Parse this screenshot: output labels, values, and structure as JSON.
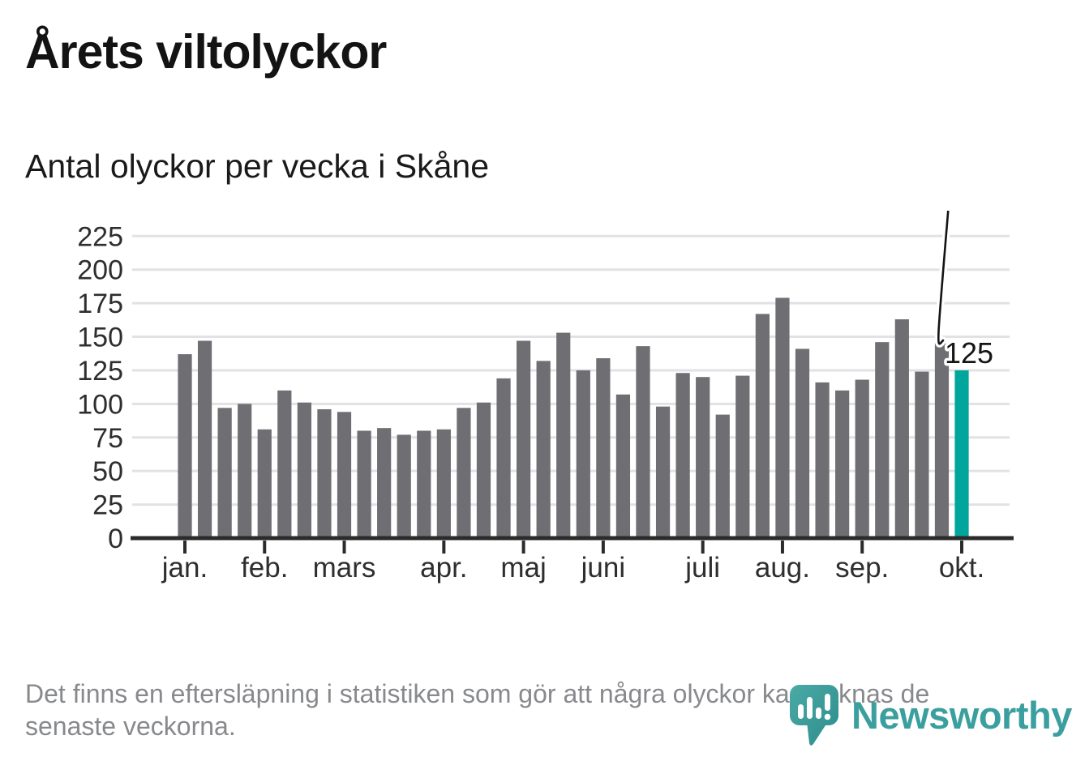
{
  "header": {
    "title": "Årets viltolyckor",
    "subtitle": "Antal olyckor per vecka i Skåne"
  },
  "chart_data": {
    "type": "bar",
    "title": "Årets viltolyckor",
    "subtitle": "Antal olyckor per vecka i Skåne",
    "x_unit": "vecka",
    "x": [
      1,
      2,
      3,
      4,
      5,
      6,
      7,
      8,
      9,
      10,
      11,
      12,
      13,
      14,
      15,
      16,
      17,
      18,
      19,
      20,
      21,
      22,
      23,
      24,
      25,
      26,
      27,
      28,
      29,
      30,
      31,
      32,
      33,
      34,
      35,
      36,
      37,
      38,
      39,
      40
    ],
    "values": [
      137,
      147,
      97,
      100,
      81,
      110,
      101,
      96,
      94,
      80,
      82,
      77,
      80,
      81,
      97,
      101,
      119,
      147,
      132,
      153,
      125,
      134,
      107,
      143,
      98,
      123,
      120,
      92,
      121,
      167,
      179,
      141,
      116,
      110,
      118,
      146,
      163,
      124,
      145,
      125
    ],
    "y_ticks": [
      0,
      25,
      50,
      75,
      100,
      125,
      150,
      175,
      200,
      225
    ],
    "ylim": [
      0,
      235
    ],
    "grid": "horizontal",
    "legend": "none",
    "x_ticks": [
      {
        "label": "jan.",
        "week": 1
      },
      {
        "label": "feb.",
        "week": 5
      },
      {
        "label": "mars",
        "week": 9
      },
      {
        "label": "apr.",
        "week": 14
      },
      {
        "label": "maj",
        "week": 18
      },
      {
        "label": "juni",
        "week": 22
      },
      {
        "label": "juli",
        "week": 27
      },
      {
        "label": "aug.",
        "week": 31
      },
      {
        "label": "sep.",
        "week": 35
      },
      {
        "label": "okt.",
        "week": 40
      }
    ],
    "highlight": {
      "week": 40,
      "value": 125,
      "value_label": "125"
    },
    "colors": {
      "bar": "#6e6e73",
      "highlight": "#00a69c",
      "grid": "#e2e2e4",
      "axis": "#2b2b2b",
      "tick_label": "#2e2e2e",
      "annotation": "#141414"
    }
  },
  "footnote": {
    "text": "Det finns en eftersläpning i statistiken som gör att några olyckor kan saknas de\nsenaste veckorna."
  },
  "logo": {
    "wordmark": "Newsworthy",
    "color": "#3a9f9e",
    "icon": "speech-bubble-bar-chart-icon"
  }
}
